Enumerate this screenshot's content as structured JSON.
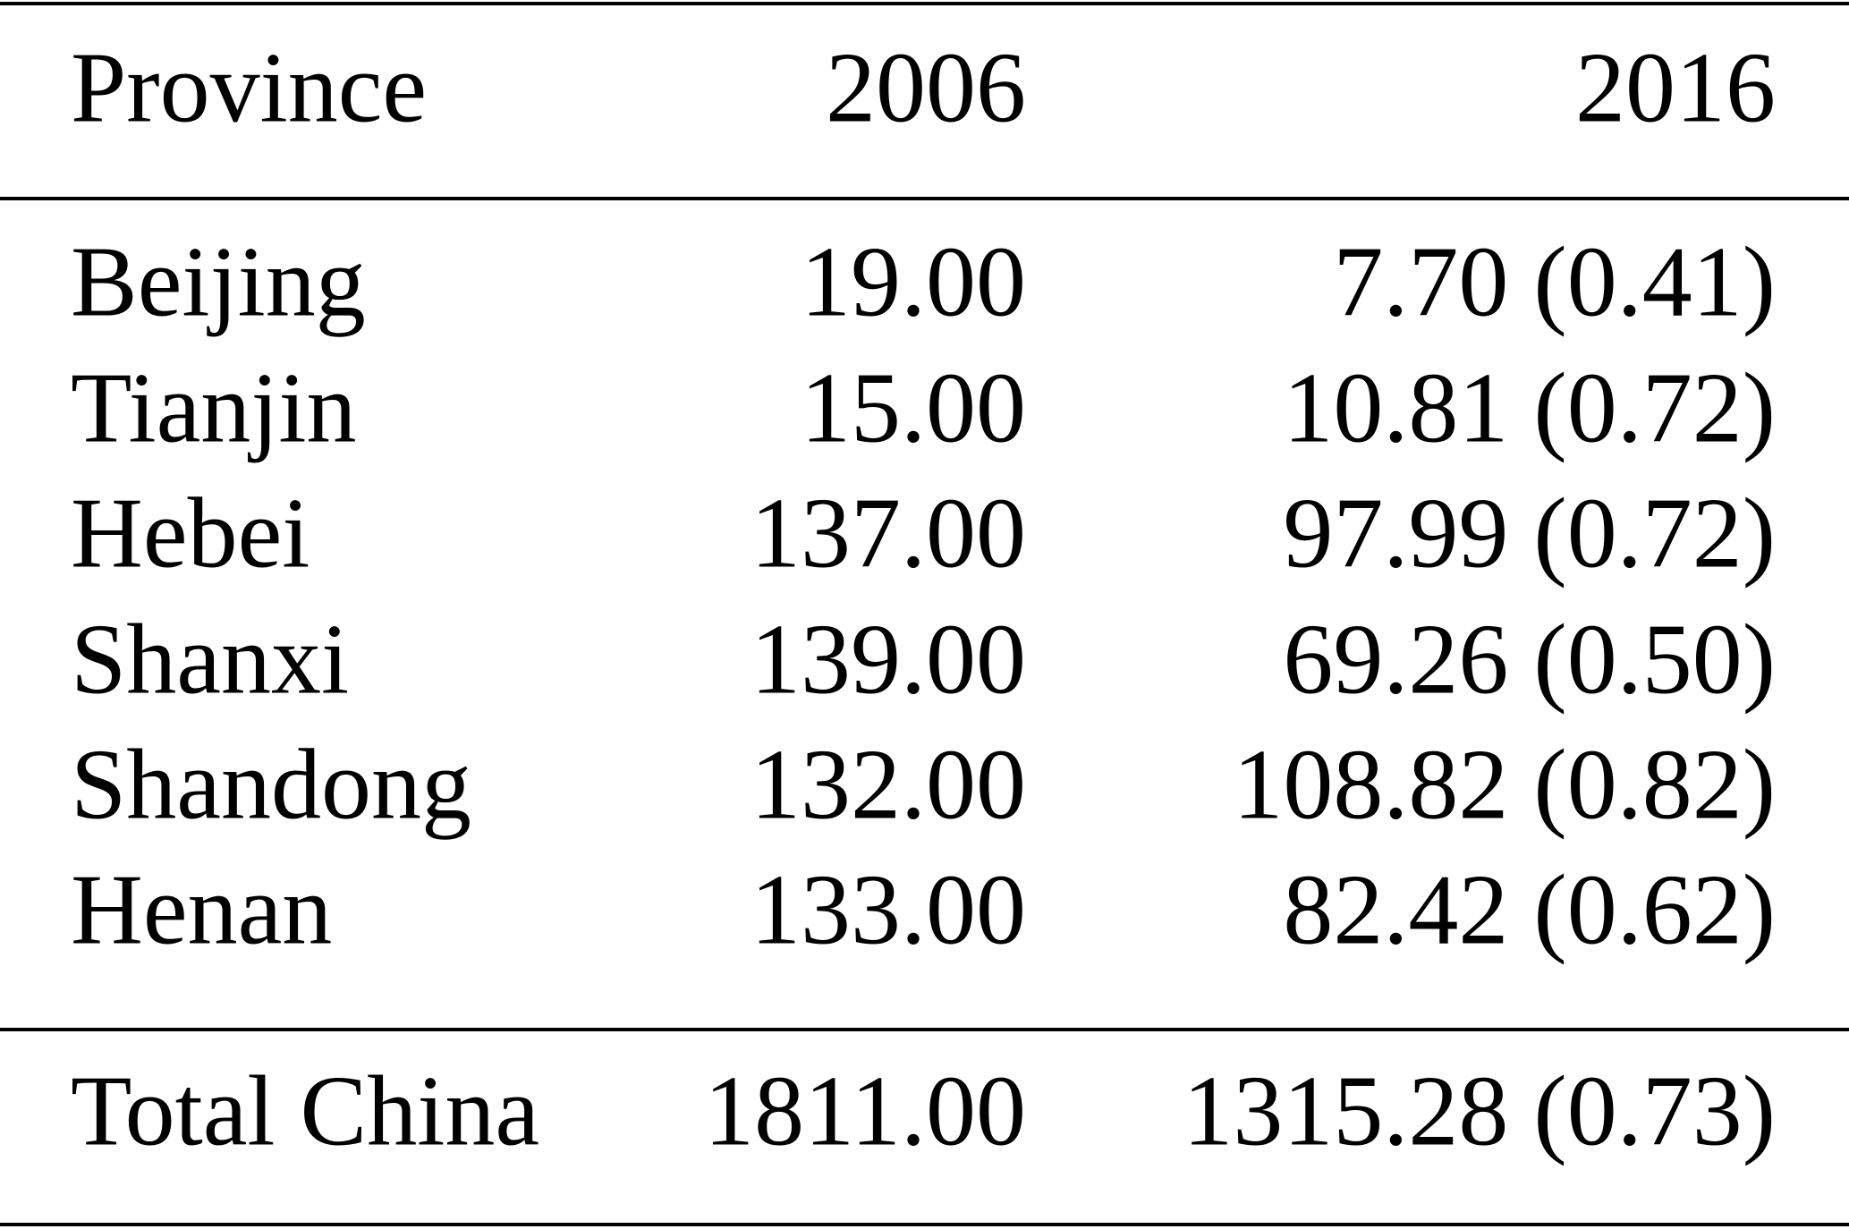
{
  "table": {
    "header": [
      "Province",
      "2006",
      "2016"
    ],
    "rows": [
      [
        "Beijing",
        "19.00",
        "7.70 (0.41)"
      ],
      [
        "Tianjin",
        "15.00",
        "10.81 (0.72)"
      ],
      [
        "Hebei",
        "137.00",
        "97.99 (0.72)"
      ],
      [
        "Shanxi",
        "139.00",
        "69.26 (0.50)"
      ],
      [
        "Shandong",
        "132.00",
        "108.82 (0.82)"
      ],
      [
        "Henan",
        "133.00",
        "82.42 (0.62)"
      ]
    ],
    "total": [
      "Total China",
      "1811.00",
      "1315.28 (0.73)"
    ]
  }
}
